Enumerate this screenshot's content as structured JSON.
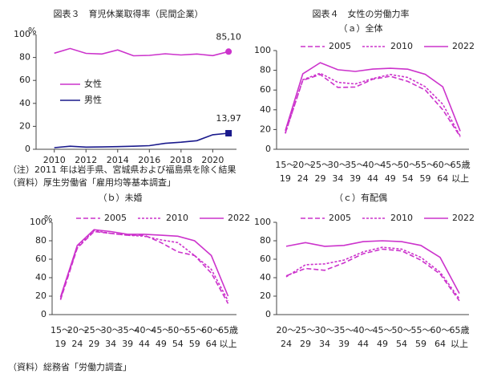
{
  "chart_data": [
    {
      "type": "line",
      "title": "図表３　育児休業取得率（民間企業）",
      "y_unit": "%",
      "x": [
        2010,
        2011,
        2012,
        2013,
        2014,
        2015,
        2016,
        2017,
        2018,
        2019,
        2020,
        2021
      ],
      "xlim": [
        2008.85,
        2021.5
      ],
      "xticks": [
        2010,
        2012,
        2014,
        2016,
        2018,
        2020
      ],
      "ylim": [
        0,
        100
      ],
      "yticks": [
        0,
        20,
        40,
        60,
        80,
        100
      ],
      "legend": "center left",
      "series": [
        {
          "name": "女性",
          "color": "#cc33cc",
          "dash": "solid",
          "marker": "circle",
          "values": [
            83.7,
            87.8,
            83.6,
            83.0,
            86.6,
            81.5,
            81.8,
            83.2,
            82.2,
            83.0,
            81.6,
            85.1
          ],
          "value_labels": [
            null,
            null,
            null,
            null,
            null,
            null,
            null,
            null,
            null,
            null,
            null,
            "85,10"
          ]
        },
        {
          "name": "男性",
          "color": "#1a1a8c",
          "dash": "solid",
          "marker": "square",
          "values": [
            1.38,
            2.63,
            1.89,
            2.03,
            2.3,
            2.65,
            3.16,
            5.14,
            6.16,
            7.48,
            12.65,
            13.97
          ],
          "value_labels": [
            null,
            null,
            null,
            null,
            null,
            null,
            null,
            null,
            null,
            null,
            null,
            "13,97"
          ]
        }
      ],
      "notes": [
        "（注）2011 年は岩手県、宮城県および福島県を除く結果",
        "（資料）厚生労働省「雇用均等基本調査」"
      ]
    },
    {
      "type": "line",
      "title": "図表４　女性の労働力率",
      "subtitle": "（ａ）全体",
      "categories": [
        [
          "15〜",
          "19"
        ],
        [
          "20〜",
          "24"
        ],
        [
          "25〜",
          "29"
        ],
        [
          "30〜",
          "34"
        ],
        [
          "35〜",
          "39"
        ],
        [
          "40〜",
          "44"
        ],
        [
          "45〜",
          "49"
        ],
        [
          "50〜",
          "54"
        ],
        [
          "55〜",
          "59"
        ],
        [
          "60〜",
          "64"
        ],
        [
          "65歳",
          "以上"
        ]
      ],
      "ylim": [
        0,
        100
      ],
      "yticks": [
        0,
        20,
        40,
        60,
        80,
        100
      ],
      "legend": "top",
      "series": [
        {
          "name": "2005",
          "color": "#cc33cc",
          "dash": "dashed",
          "values": [
            16.5,
            69.8,
            75.7,
            62.7,
            63.0,
            71.0,
            73.9,
            68.8,
            60.0,
            40.1,
            12.7
          ]
        },
        {
          "name": "2010",
          "color": "#cc33cc",
          "dash": "dotted",
          "values": [
            15.9,
            70.4,
            77.1,
            67.8,
            66.2,
            71.6,
            75.8,
            72.8,
            63.3,
            45.7,
            13.3
          ]
        },
        {
          "name": "2022",
          "color": "#cc33cc",
          "dash": "solid",
          "values": [
            18.8,
            76.4,
            87.7,
            80.6,
            78.9,
            81.2,
            82.0,
            81.1,
            75.9,
            63.3,
            18.4
          ]
        }
      ]
    },
    {
      "type": "line",
      "subtitle": "（ｂ）未婚",
      "y_unit": "%",
      "categories": [
        [
          "15〜",
          "19"
        ],
        [
          "20〜",
          "24"
        ],
        [
          "25〜",
          "29"
        ],
        [
          "30〜",
          "34"
        ],
        [
          "35〜",
          "39"
        ],
        [
          "40〜",
          "44"
        ],
        [
          "45〜",
          "49"
        ],
        [
          "50〜",
          "54"
        ],
        [
          "55〜",
          "59"
        ],
        [
          "60〜",
          "64"
        ],
        [
          "65歳",
          "以上"
        ]
      ],
      "ylim": [
        0,
        100
      ],
      "yticks": [
        0,
        20,
        40,
        60,
        80,
        100
      ],
      "legend": "top",
      "series": [
        {
          "name": "2005",
          "color": "#cc33cc",
          "dash": "dashed",
          "values": [
            16,
            72,
            90,
            88,
            86,
            86,
            78,
            68,
            64,
            45,
            12
          ]
        },
        {
          "name": "2010",
          "color": "#cc33cc",
          "dash": "dotted",
          "values": [
            17,
            73,
            91,
            88,
            86,
            85,
            81,
            78,
            64,
            49,
            15
          ]
        },
        {
          "name": "2022",
          "color": "#cc33cc",
          "dash": "solid",
          "values": [
            19,
            75,
            92,
            90,
            87,
            87,
            86,
            85,
            80,
            64,
            20
          ]
        }
      ],
      "notes": [
        "（資料）総務省「労働力調査」"
      ]
    },
    {
      "type": "line",
      "subtitle": "（ｃ）有配偶",
      "categories": [
        [
          "20〜",
          "24"
        ],
        [
          "25〜",
          "29"
        ],
        [
          "30〜",
          "34"
        ],
        [
          "35〜",
          "39"
        ],
        [
          "40〜",
          "44"
        ],
        [
          "45〜",
          "49"
        ],
        [
          "50〜",
          "54"
        ],
        [
          "55〜",
          "59"
        ],
        [
          "60〜",
          "64"
        ],
        [
          "65歳",
          "以上"
        ]
      ],
      "ylim": [
        0,
        100
      ],
      "yticks": [
        0,
        20,
        40,
        60,
        80,
        100
      ],
      "legend": "top",
      "series": [
        {
          "name": "2005",
          "color": "#cc33cc",
          "dash": "dashed",
          "values": [
            42,
            50,
            48,
            56,
            66,
            71,
            69,
            59,
            44,
            15
          ]
        },
        {
          "name": "2010",
          "color": "#cc33cc",
          "dash": "dotted",
          "values": [
            41,
            54,
            55,
            59,
            68,
            73,
            71,
            62,
            46,
            17
          ]
        },
        {
          "name": "2022",
          "color": "#cc33cc",
          "dash": "solid",
          "values": [
            74,
            78,
            74,
            75,
            79,
            80,
            79,
            75,
            62,
            23
          ]
        }
      ]
    }
  ]
}
